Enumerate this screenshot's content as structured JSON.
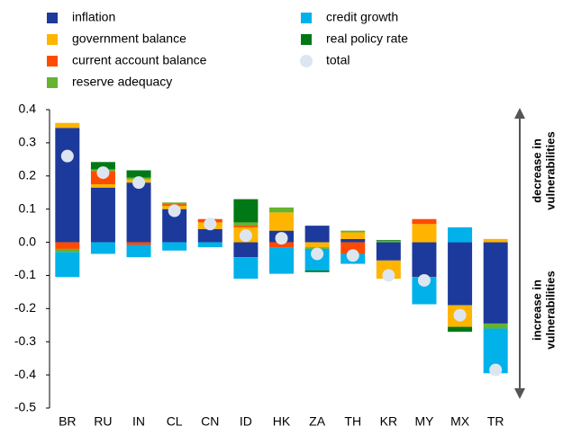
{
  "chart_data": {
    "type": "bar",
    "stacked": true,
    "categories": [
      "BR",
      "RU",
      "IN",
      "CL",
      "CN",
      "ID",
      "HK",
      "ZA",
      "TH",
      "KR",
      "MY",
      "MX",
      "TR"
    ],
    "series": [
      {
        "name": "inflation",
        "color": "#1c3a9c",
        "values": [
          0.345,
          0.165,
          0.18,
          0.1,
          0.04,
          -0.045,
          0.035,
          0.05,
          0.01,
          -0.055,
          -0.105,
          -0.19,
          -0.245
        ]
      },
      {
        "name": "government balance",
        "color": "#ffb400",
        "values": [
          0.015,
          0.01,
          0.01,
          0.01,
          0.02,
          0.045,
          0.055,
          -0.015,
          0.02,
          -0.055,
          0.055,
          -0.065,
          0.01
        ]
      },
      {
        "name": "current account balance",
        "color": "#ff4b00",
        "values": [
          -0.02,
          0.04,
          -0.008,
          0.005,
          0.01,
          0.005,
          -0.015,
          0,
          -0.035,
          0,
          0.015,
          0,
          0
        ]
      },
      {
        "name": "reserve adequacy",
        "color": "#65b32e",
        "values": [
          -0.01,
          0.005,
          0.005,
          0.005,
          0,
          0.01,
          0.015,
          -0.005,
          0.005,
          0.005,
          -0.002,
          0,
          -0.015
        ]
      },
      {
        "name": "credit growth",
        "color": "#00b1ea",
        "values": [
          -0.075,
          -0.035,
          -0.037,
          -0.025,
          -0.015,
          -0.065,
          -0.08,
          -0.065,
          -0.03,
          0,
          -0.08,
          0.045,
          -0.135
        ]
      },
      {
        "name": "real policy rate",
        "color": "#007816",
        "values": [
          0,
          0.022,
          0.022,
          0,
          0,
          0.07,
          0,
          -0.005,
          0,
          0.002,
          0,
          -0.015,
          0
        ]
      }
    ],
    "total": {
      "name": "total",
      "color": "#dde6f0",
      "values": [
        0.26,
        0.21,
        0.18,
        0.095,
        0.055,
        0.02,
        0.012,
        -0.035,
        -0.04,
        -0.1,
        -0.115,
        -0.22,
        -0.385
      ]
    },
    "ylim": [
      -0.5,
      0.4
    ],
    "yticks": [
      0.4,
      0.3,
      0.2,
      0.1,
      {
        "value": 0,
        "label": "0.0"
      },
      -0.1,
      -0.2,
      -0.3,
      -0.4,
      -0.5
    ],
    "annotations": [
      [
        "decrease in",
        "vulnerabilities"
      ],
      [
        "increase in",
        "vulnerabilities"
      ]
    ],
    "grid": false
  }
}
